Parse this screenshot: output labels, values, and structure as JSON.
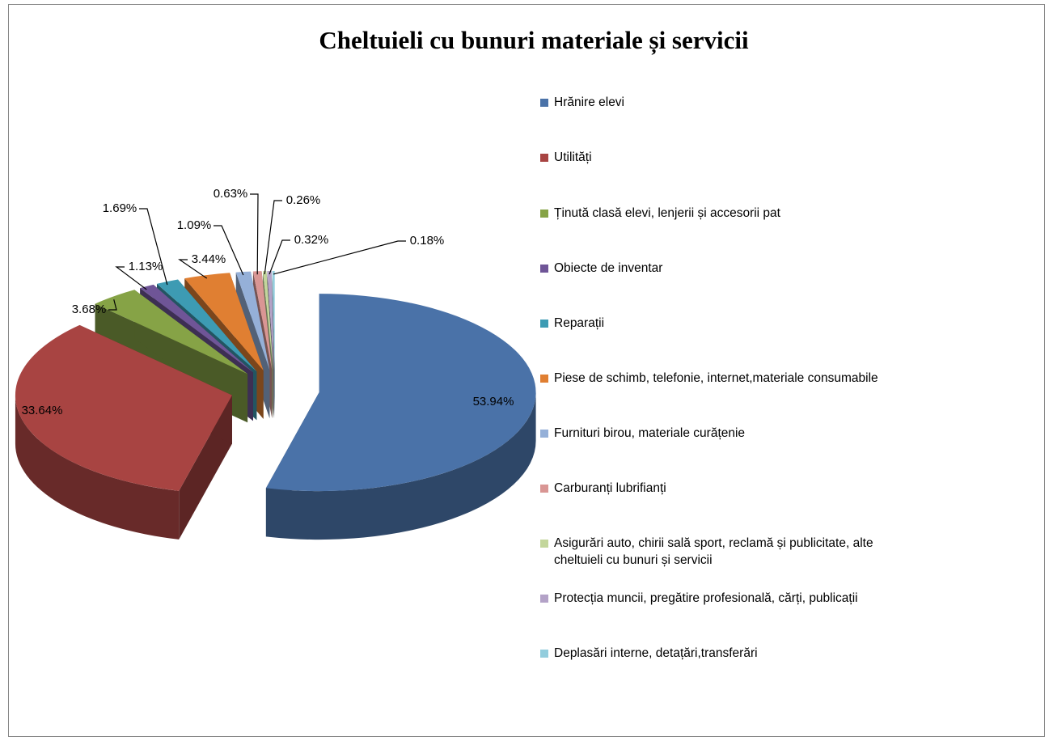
{
  "chart_data": {
    "type": "pie",
    "title": "Cheltuieli cu bunuri materiale și servicii",
    "categories": [
      "Hrănire elevi",
      "Utilități",
      "Ținută clasă elevi, lenjerii și accesorii pat",
      "Obiecte de inventar",
      "Reparații",
      "Piese de schimb, telefonie, internet,materiale consumabile",
      "Furnituri birou, materiale curățenie",
      "Carburanți lubrifianți",
      "Asigurări auto, chirii sală sport, reclamă și publicitate, alte cheltuieli cu bunuri și servicii",
      "Protecția muncii, pregătire profesională, cărți, publicații",
      "Deplasări interne, detațări,transferări"
    ],
    "values": [
      53.94,
      33.64,
      3.68,
      1.13,
      1.69,
      3.44,
      1.09,
      0.63,
      0.26,
      0.32,
      0.18
    ],
    "value_labels": [
      "53.94%",
      "33.64%",
      "3.68%",
      "1.13%",
      "1.69%",
      "3.44%",
      "1.09%",
      "0.63%",
      "0.26%",
      "0.32%",
      "0.18%"
    ],
    "colors": [
      "#4a72a8",
      "#a84442",
      "#86a346",
      "#6f5597",
      "#3d9bb3",
      "#e07f32",
      "#95b0d8",
      "#d99694",
      "#c3d69b",
      "#b3a2c7",
      "#93cddd"
    ],
    "legend": "right"
  }
}
